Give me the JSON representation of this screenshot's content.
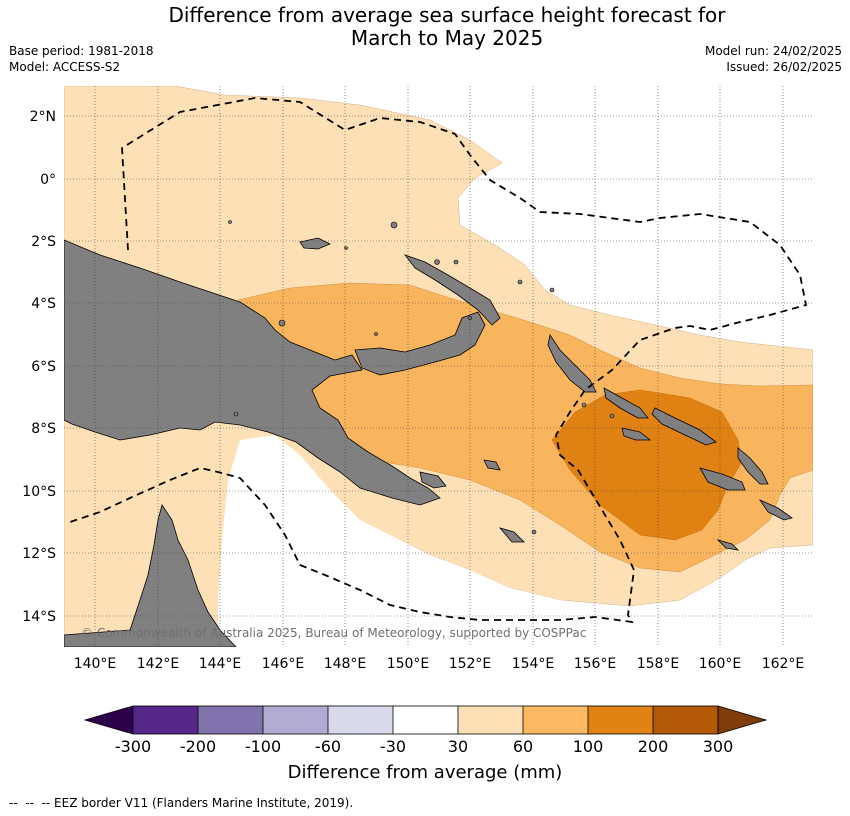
{
  "header": {
    "title_line1": "Difference from average sea surface height forecast for",
    "title_line2": "March to May 2025",
    "base_period": "Base period: 1981-2018",
    "model": "Model: ACCESS-S2",
    "model_run": "Model run: 24/02/2025",
    "issued": "Issued: 26/02/2025"
  },
  "map": {
    "lat_labels": [
      "2°N",
      "0°",
      "2°S",
      "4°S",
      "6°S",
      "8°S",
      "10°S",
      "12°S",
      "14°S"
    ],
    "lon_labels": [
      "140°E",
      "142°E",
      "144°E",
      "146°E",
      "148°E",
      "150°E",
      "152°E",
      "154°E",
      "156°E",
      "158°E",
      "160°E",
      "162°E"
    ],
    "copyright": "© Commonwealth of Australia 2025, Bureau of Meteorology, supported by COSPPac",
    "colors": {
      "land": "#808080",
      "band_30_60": "#fde0b6",
      "band_60_100": "#f8b55e",
      "band_100_200": "#e08213",
      "eez_border": "#000000"
    }
  },
  "colorbar": {
    "labels": [
      "-300",
      "-200",
      "-100",
      "-60",
      "-30",
      "30",
      "60",
      "100",
      "200",
      "300"
    ],
    "colors": [
      "#2d004b",
      "#542788",
      "#8073ac",
      "#b2abd2",
      "#d8daeb",
      "#ffffff",
      "#fee0b6",
      "#fdb863",
      "#e08214",
      "#b35806",
      "#7f3b08"
    ],
    "title": "Difference from average (mm)"
  },
  "footer": {
    "legend_text": "--  --  -- EEZ border V11 (Flanders Marine Institute, 2019)."
  }
}
